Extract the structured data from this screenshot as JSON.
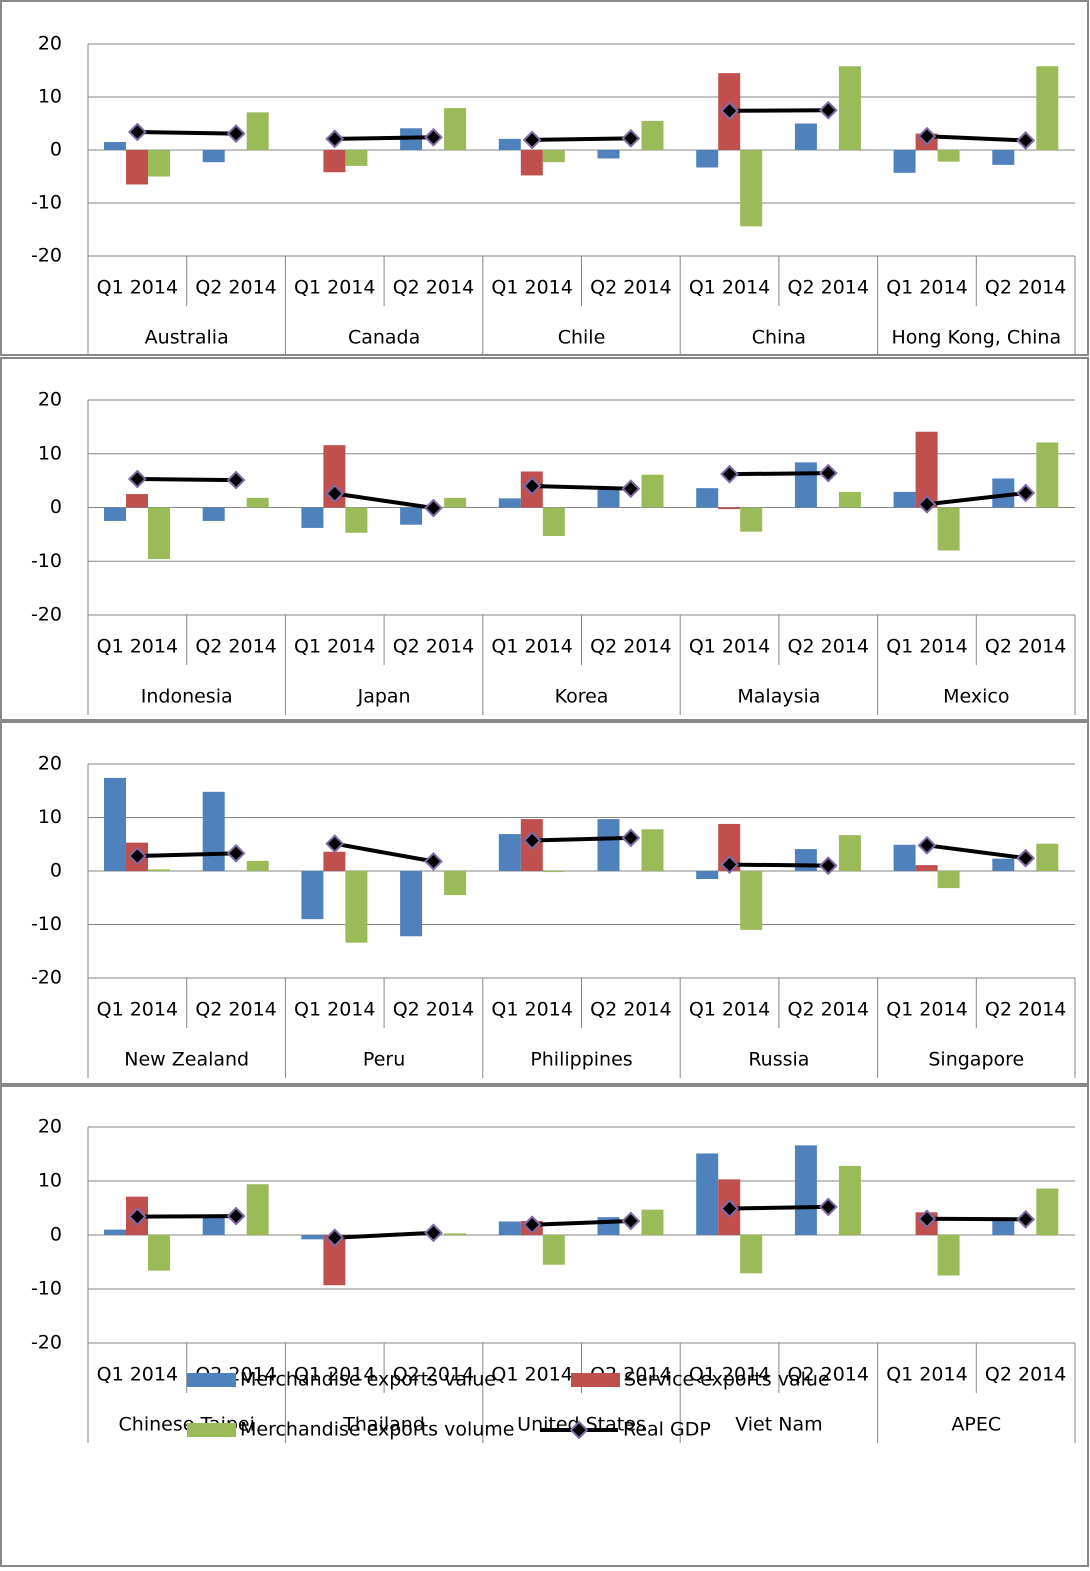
{
  "chart_data": [
    {
      "type": "bar",
      "categories": [
        "Q1 2014",
        "Q2 2014",
        "Q1 2014",
        "Q2 2014",
        "Q1 2014",
        "Q2 2014",
        "Q1 2014",
        "Q2 2014",
        "Q1 2014",
        "Q2 2014"
      ],
      "groups": [
        "Australia",
        "Canada",
        "Chile",
        "China",
        "Hong Kong, China"
      ],
      "ylim": [
        -20,
        20
      ],
      "yticks": [
        -20,
        -10,
        0,
        10,
        20
      ],
      "grid": true,
      "series": [
        {
          "type": "bar",
          "color": "#4f81bd",
          "values": [
            1.5,
            -2.3,
            0,
            4.1,
            2.1,
            -1.6,
            -3.3,
            5.0,
            -4.3,
            -2.8
          ]
        },
        {
          "type": "bar",
          "color": "#c0504d",
          "values": [
            -6.5,
            null,
            -4.2,
            null,
            -4.8,
            null,
            14.5,
            null,
            3.1,
            null
          ]
        },
        {
          "type": "bar",
          "color": "#9bbb59",
          "values": [
            -5,
            7.1,
            -3,
            7.9,
            -2.3,
            5.5,
            -14.4,
            15.8,
            -2.2,
            15.8
          ]
        },
        {
          "type": "line",
          "color": "#000000",
          "values": [
            3.4,
            3.1,
            2.1,
            2.4,
            1.9,
            2.2,
            7.4,
            7.5,
            2.6,
            1.8
          ]
        }
      ]
    },
    {
      "type": "bar",
      "categories": [
        "Q1 2014",
        "Q2 2014",
        "Q1 2014",
        "Q2 2014",
        "Q1 2014",
        "Q2 2014",
        "Q1 2014",
        "Q2 2014",
        "Q1 2014",
        "Q2 2014"
      ],
      "groups": [
        "Indonesia",
        "Japan",
        "Korea",
        "Malaysia",
        "Mexico"
      ],
      "ylim": [
        -20,
        20
      ],
      "yticks": [
        -20,
        -10,
        0,
        10,
        20
      ],
      "grid": true,
      "series": [
        {
          "type": "bar",
          "color": "#4f81bd",
          "values": [
            -2.5,
            -2.5,
            -3.8,
            -3.2,
            1.7,
            3.5,
            3.6,
            8.4,
            2.9,
            5.4
          ]
        },
        {
          "type": "bar",
          "color": "#c0504d",
          "values": [
            2.5,
            null,
            11.6,
            null,
            6.7,
            null,
            -0.3,
            null,
            14.1,
            null
          ]
        },
        {
          "type": "bar",
          "color": "#9bbb59",
          "values": [
            -9.6,
            1.8,
            -4.7,
            1.8,
            -5.3,
            6.1,
            -4.5,
            2.9,
            -8.0,
            12.1
          ]
        },
        {
          "type": "line",
          "color": "#000000",
          "values": [
            5.3,
            5.1,
            2.6,
            -0.1,
            4.0,
            3.5,
            6.2,
            6.4,
            0.6,
            2.7
          ]
        }
      ]
    },
    {
      "type": "bar",
      "categories": [
        "Q1 2014",
        "Q2 2014",
        "Q1 2014",
        "Q2 2014",
        "Q1 2014",
        "Q2 2014",
        "Q1 2014",
        "Q2 2014",
        "Q1 2014",
        "Q2 2014"
      ],
      "groups": [
        "New Zealand",
        "Peru",
        "Philippines",
        "Russia",
        "Singapore"
      ],
      "ylim": [
        -20,
        20
      ],
      "yticks": [
        -20,
        -10,
        0,
        10,
        20
      ],
      "grid": true,
      "series": [
        {
          "type": "bar",
          "color": "#4f81bd",
          "values": [
            17.4,
            14.8,
            -9.0,
            -12.2,
            6.9,
            9.7,
            -1.5,
            4.1,
            4.9,
            2.3
          ]
        },
        {
          "type": "bar",
          "color": "#c0504d",
          "values": [
            5.3,
            null,
            3.6,
            null,
            9.7,
            null,
            8.8,
            null,
            1.1,
            null
          ]
        },
        {
          "type": "bar",
          "color": "#9bbb59",
          "values": [
            0.3,
            1.9,
            -13.4,
            -4.5,
            -0.2,
            7.8,
            -11.0,
            6.7,
            -3.2,
            5.1
          ]
        },
        {
          "type": "line",
          "color": "#000000",
          "values": [
            2.8,
            3.3,
            5.1,
            1.8,
            5.7,
            6.2,
            1.2,
            1.0,
            4.8,
            2.4
          ]
        }
      ]
    },
    {
      "type": "bar",
      "categories": [
        "Q1 2014",
        "Q2 2014",
        "Q1 2014",
        "Q2 2014",
        "Q1 2014",
        "Q2 2014",
        "Q1 2014",
        "Q2 2014",
        "Q1 2014",
        "Q2 2014"
      ],
      "groups": [
        "Chinese Taipei",
        "Thailand",
        "United States",
        "Viet Nam",
        "APEC"
      ],
      "ylim": [
        -20,
        20
      ],
      "yticks": [
        -20,
        -10,
        0,
        10,
        20
      ],
      "grid": true,
      "series": [
        {
          "type": "bar",
          "name": "Merchandise exports value",
          "color": "#4f81bd",
          "values": [
            1.0,
            3.5,
            -0.8,
            0.2,
            2.5,
            3.3,
            15.1,
            16.6,
            0,
            2.9
          ]
        },
        {
          "type": "bar",
          "name": "Service exports value",
          "color": "#c0504d",
          "values": [
            7.1,
            null,
            -9.3,
            null,
            2.6,
            null,
            10.3,
            null,
            4.2,
            null
          ]
        },
        {
          "type": "bar",
          "name": "Merchandise exports volume",
          "color": "#9bbb59",
          "values": [
            -6.6,
            9.4,
            0.0,
            0.3,
            -5.5,
            4.7,
            -7.1,
            12.8,
            -7.5,
            8.6
          ]
        },
        {
          "type": "line",
          "name": "Real GDP",
          "color": "#000000",
          "values": [
            3.4,
            3.5,
            -0.5,
            0.4,
            1.9,
            2.6,
            4.9,
            5.2,
            3.0,
            2.9
          ]
        }
      ]
    }
  ]
}
